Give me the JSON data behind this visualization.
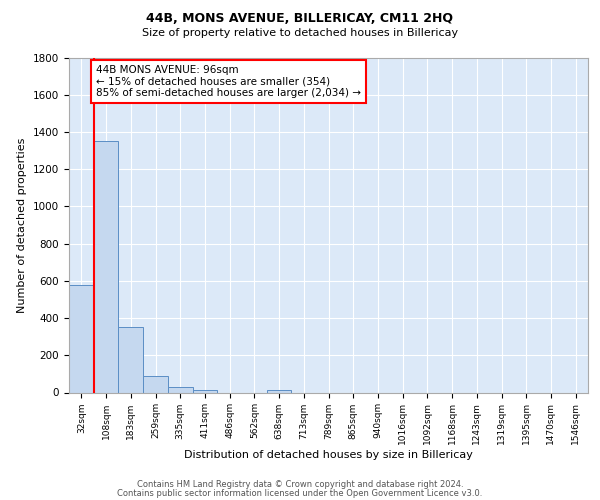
{
  "title1": "44B, MONS AVENUE, BILLERICAY, CM11 2HQ",
  "title2": "Size of property relative to detached houses in Billericay",
  "xlabel": "Distribution of detached houses by size in Billericay",
  "ylabel": "Number of detached properties",
  "footer1": "Contains HM Land Registry data © Crown copyright and database right 2024.",
  "footer2": "Contains public sector information licensed under the Open Government Licence v3.0.",
  "categories": [
    "32sqm",
    "108sqm",
    "183sqm",
    "259sqm",
    "335sqm",
    "411sqm",
    "486sqm",
    "562sqm",
    "638sqm",
    "713sqm",
    "789sqm",
    "865sqm",
    "940sqm",
    "1016sqm",
    "1092sqm",
    "1168sqm",
    "1243sqm",
    "1319sqm",
    "1395sqm",
    "1470sqm",
    "1546sqm"
  ],
  "values": [
    580,
    1350,
    350,
    90,
    28,
    14,
    0,
    0,
    14,
    0,
    0,
    0,
    0,
    0,
    0,
    0,
    0,
    0,
    0,
    0,
    0
  ],
  "bar_color": "#c5d8ef",
  "bar_edge_color": "#5b8ec5",
  "annotation_line1": "44B MONS AVENUE: 96sqm",
  "annotation_line2": "← 15% of detached houses are smaller (354)",
  "annotation_line3": "85% of semi-detached houses are larger (2,034) →",
  "annotation_box_color": "white",
  "annotation_box_edge": "red",
  "red_line_x": 0.5,
  "ylim": [
    0,
    1800
  ],
  "yticks": [
    0,
    200,
    400,
    600,
    800,
    1000,
    1200,
    1400,
    1600,
    1800
  ],
  "background_color": "#dce9f8",
  "grid_color": "#ffffff",
  "footer_color": "#555555"
}
